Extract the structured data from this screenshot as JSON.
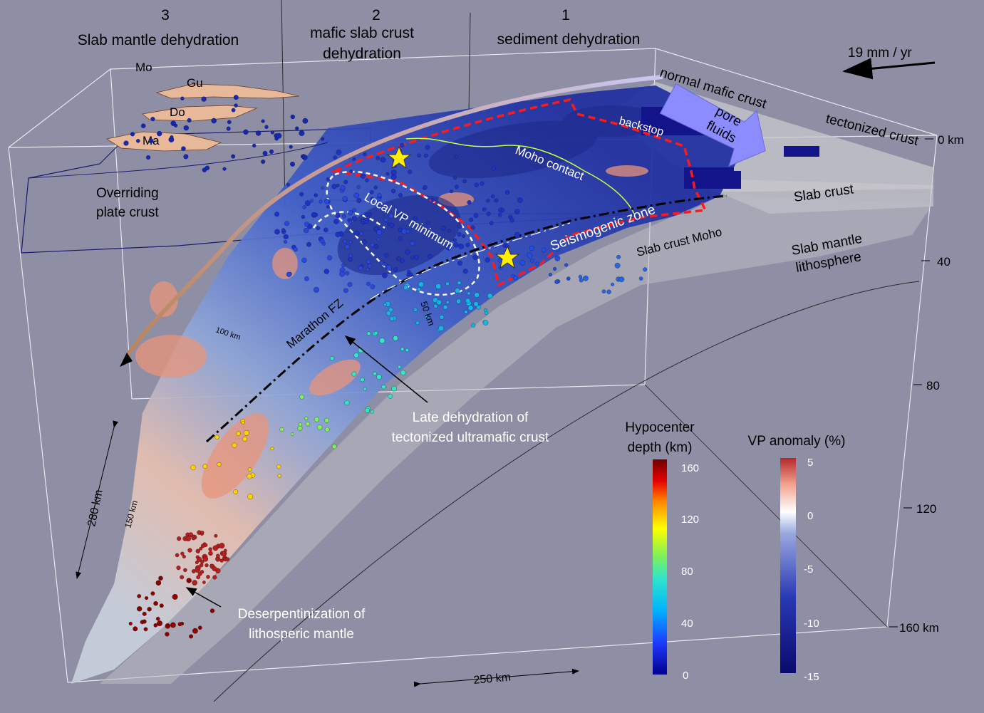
{
  "zones": [
    {
      "num": "3",
      "line1": "Slab mantle dehydration",
      "line2": ""
    },
    {
      "num": "2",
      "line1": "mafic slab crust",
      "line2": "dehydration"
    },
    {
      "num": "1",
      "line1": "sediment dehydration",
      "line2": ""
    }
  ],
  "velocity": "19 mm / yr",
  "islands": [
    "Mo",
    "Gu",
    "Do",
    "Ma"
  ],
  "labels": {
    "overriding_1": "Overriding",
    "overriding_2": "plate crust",
    "normal_mafic": "normal mafic crust",
    "tectonized": "tectonized crust",
    "backstop": "backstop",
    "pore_1": "pore",
    "pore_2": "fluids",
    "moho_contact": "Moho contact",
    "slab_crust": "Slab crust",
    "local_vp": "Local VP minimum",
    "seismogenic": "Seismogenic zone",
    "slab_moho": "Slab crust Moho",
    "slab_mantle_1": "Slab mantle",
    "slab_mantle_2": "lithosphere",
    "marathon": "Marathon FZ",
    "km100": "100 km",
    "km50": "50 km",
    "km150": "150 km",
    "late_1": "Late dehydration of",
    "late_2": "tectonized ultramafic crust",
    "deserp_1": "Deserpentinization of",
    "deserp_2": "lithosperic mantle",
    "scale_280": "280 km",
    "scale_250": "250 km"
  },
  "depth_axis": [
    "0 km",
    "40",
    "80",
    "120",
    "160 km"
  ],
  "hypo_legend": {
    "title_1": "Hypocenter",
    "title_2": "depth (km)",
    "ticks": [
      "160",
      "120",
      "80",
      "40",
      "0"
    ]
  },
  "vp_legend": {
    "title": "VP anomaly (%)",
    "ticks": [
      "5",
      "0",
      "-5",
      "-10",
      "-15"
    ]
  },
  "colors": {
    "background": "#8e8ea4",
    "boundary": "#ff1a1a",
    "star": "#ffee00",
    "moho_contact": "#c8ff3c",
    "fluids_arrow": "#8c8cff"
  }
}
